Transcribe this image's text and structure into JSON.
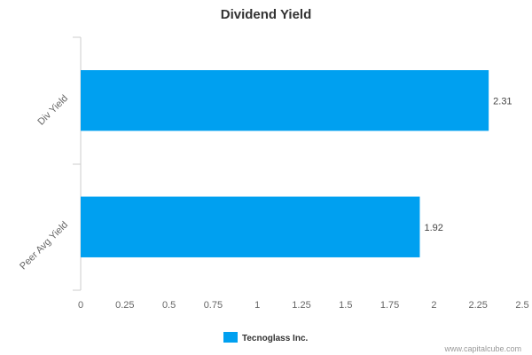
{
  "chart_data": {
    "type": "bar",
    "orientation": "horizontal",
    "title": "Dividend Yield",
    "categories": [
      "Div Yield",
      "Peer Avg Yield"
    ],
    "series": [
      {
        "name": "Tecnoglass Inc.",
        "values": [
          2.31,
          1.92
        ],
        "color": "#00a0f0"
      }
    ],
    "data_labels": [
      "2.31",
      "1.92"
    ],
    "xlim": [
      0,
      2.5
    ],
    "xticks": [
      0,
      0.25,
      0.5,
      0.75,
      1,
      1.25,
      1.5,
      1.75,
      2,
      2.25,
      2.5
    ],
    "xtick_labels": [
      "0",
      "0.25",
      "0.5",
      "0.75",
      "1",
      "1.25",
      "1.5",
      "1.75",
      "2",
      "2.25",
      "2.5"
    ],
    "grid": false,
    "legend_position": "bottom-center"
  },
  "watermark": "www.capitalcube.com"
}
